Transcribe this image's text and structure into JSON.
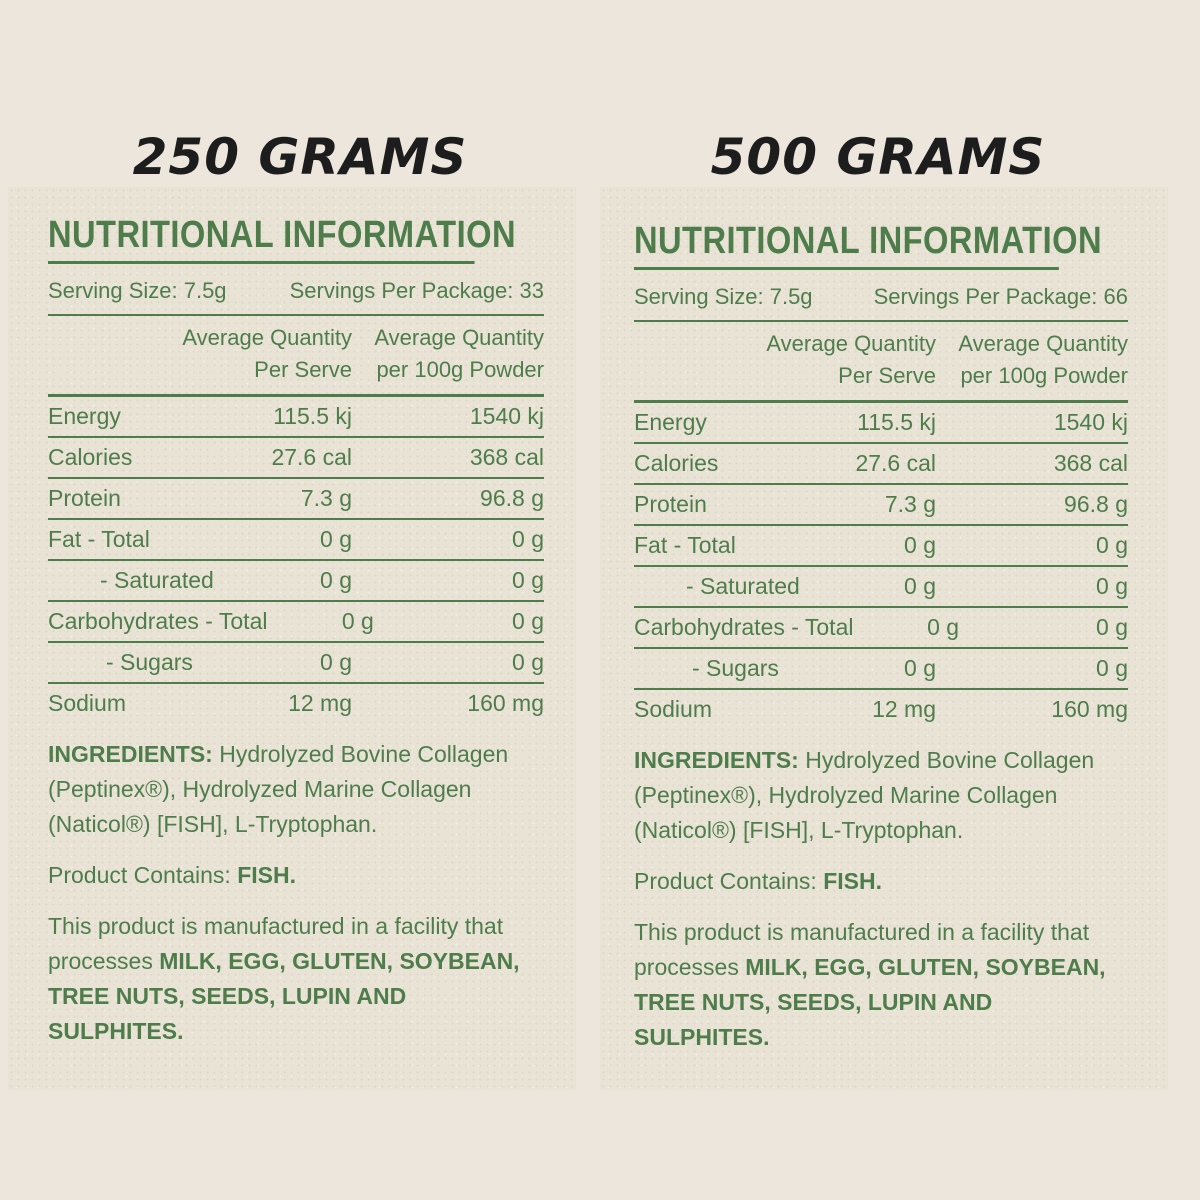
{
  "panels": [
    {
      "heading": "250 GRAMS",
      "title": "NUTRITIONAL INFORMATION",
      "serving_size": "Serving Size: 7.5g",
      "servings_per_package": "Servings Per Package: 33",
      "col1_line1": "Average Quantity",
      "col1_line2": "Per Serve",
      "col2_line1": "Average Quantity",
      "col2_line2": "per 100g Powder",
      "rows": [
        {
          "name": "Energy",
          "per_serve": "115.5 kj",
          "per_100g": "1540 kj"
        },
        {
          "name": "Calories",
          "per_serve": "27.6 cal",
          "per_100g": "368 cal"
        },
        {
          "name": "Protein",
          "per_serve": "7.3 g",
          "per_100g": "96.8 g"
        },
        {
          "name": "Fat - Total",
          "per_serve": "0 g",
          "per_100g": "0 g"
        },
        {
          "name": "- Saturated",
          "per_serve": "0 g",
          "per_100g": "0 g"
        },
        {
          "name": "Carbohydrates - Total",
          "per_serve": "0 g",
          "per_100g": "0 g"
        },
        {
          "name": "- Sugars",
          "per_serve": "0 g",
          "per_100g": "0 g"
        },
        {
          "name": "Sodium",
          "per_serve": "12 mg",
          "per_100g": "160 mg"
        }
      ],
      "ingredients_label": "INGREDIENTS:",
      "ingredients_text": " Hydrolyzed Bovine Collagen (Peptinex®), Hydrolyzed Marine Collagen (Naticol®) [FISH], L-Tryptophan.",
      "contains_label": "Product Contains: ",
      "contains_value": "FISH.",
      "allergen_prefix": "This product is manufactured in a facility that processes ",
      "allergen_list": "MILK, EGG, GLUTEN, SOYBEAN, TREE NUTS, SEEDS, LUPIN AND SULPHITES."
    },
    {
      "heading": "500 GRAMS",
      "title": "NUTRITIONAL INFORMATION",
      "serving_size": "Serving Size: 7.5g",
      "servings_per_package": "Servings Per Package: 66",
      "col1_line1": "Average Quantity",
      "col1_line2": "Per Serve",
      "col2_line1": "Average Quantity",
      "col2_line2": "per 100g Powder",
      "rows": [
        {
          "name": "Energy",
          "per_serve": "115.5 kj",
          "per_100g": "1540 kj"
        },
        {
          "name": "Calories",
          "per_serve": "27.6 cal",
          "per_100g": "368 cal"
        },
        {
          "name": "Protein",
          "per_serve": "7.3 g",
          "per_100g": "96.8 g"
        },
        {
          "name": "Fat - Total",
          "per_serve": "0 g",
          "per_100g": "0 g"
        },
        {
          "name": "- Saturated",
          "per_serve": "0 g",
          "per_100g": "0 g"
        },
        {
          "name": "Carbohydrates - Total",
          "per_serve": "0 g",
          "per_100g": "0 g"
        },
        {
          "name": "- Sugars",
          "per_serve": "0 g",
          "per_100g": "0 g"
        },
        {
          "name": "Sodium",
          "per_serve": "12 mg",
          "per_100g": "160 mg"
        }
      ],
      "ingredients_label": "INGREDIENTS:",
      "ingredients_text": " Hydrolyzed Bovine Collagen (Peptinex®), Hydrolyzed Marine Collagen (Naticol®) [FISH], L-Tryptophan.",
      "contains_label": "Product Contains: ",
      "contains_value": "FISH.",
      "allergen_prefix": "This product is manufactured in a facility that processes ",
      "allergen_list": "MILK, EGG, GLUTEN, SOYBEAN, TREE NUTS, SEEDS, LUPIN AND SULPHITES."
    }
  ],
  "colors": {
    "background": "#ede6dc",
    "panel": "#e9e3d6",
    "label_green": "#4e7d4b",
    "heading_dark": "#1d1d1d"
  }
}
